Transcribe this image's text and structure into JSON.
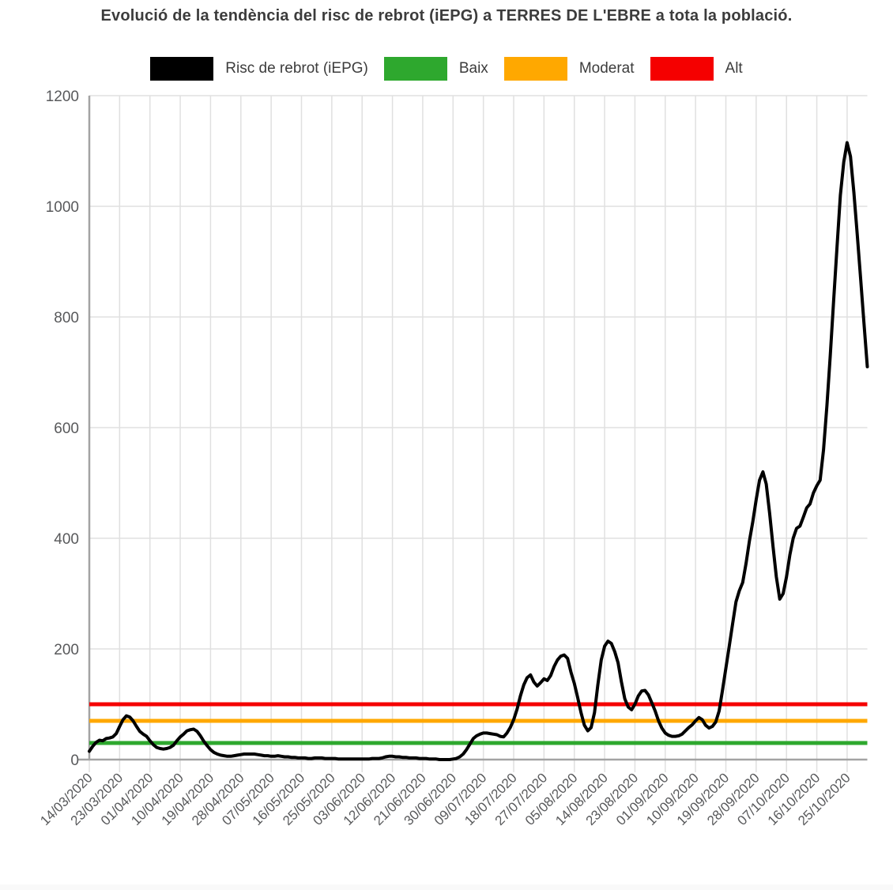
{
  "title": "Evolució de la tendència del risc de rebrot (iEPG) a TERRES DE L'EBRE a tota la població.",
  "legend": [
    {
      "label": "Risc de rebrot (iEPG)",
      "color": "#000000"
    },
    {
      "label": "Baix",
      "color": "#2ea82e"
    },
    {
      "label": "Moderat",
      "color": "#ffa800"
    },
    {
      "label": "Alt",
      "color": "#f50000"
    }
  ],
  "colors": {
    "series": "#000000",
    "baix": "#2ea82e",
    "moderat": "#ffa800",
    "alt": "#f50000",
    "grid": "#e0e0e0",
    "axis": "#a3a3a3",
    "tick_text": "#58595b",
    "title_text": "#3c3c3c"
  },
  "chart_data": {
    "type": "line",
    "title": "Evolució de la tendència del risc de rebrot (iEPG) a TERRES DE L'EBRE a tota la població.",
    "xlabel": "",
    "ylabel": "",
    "ylim": [
      0,
      1200
    ],
    "y_ticks": [
      0,
      200,
      400,
      600,
      800,
      1000,
      1200
    ],
    "grid": true,
    "legend_position": "top",
    "x_tick_labels": [
      "14/03/2020",
      "23/03/2020",
      "01/04/2020",
      "10/04/2020",
      "19/04/2020",
      "28/04/2020",
      "07/05/2020",
      "16/05/2020",
      "25/05/2020",
      "03/06/2020",
      "12/06/2020",
      "21/06/2020",
      "30/06/2020",
      "09/07/2020",
      "18/07/2020",
      "27/07/2020",
      "05/08/2020",
      "14/08/2020",
      "23/08/2020",
      "01/09/2020",
      "10/09/2020",
      "19/09/2020",
      "28/09/2020",
      "07/10/2020",
      "16/10/2020",
      "25/10/2020"
    ],
    "x_tick_interval_days": 9,
    "start_date": "14/03/2020",
    "end_date": "31/10/2020",
    "cadence": "daily",
    "thresholds": [
      {
        "name": "Baix",
        "value": 30,
        "color": "#2ea82e"
      },
      {
        "name": "Moderat",
        "value": 70,
        "color": "#ffa800"
      },
      {
        "name": "Alt",
        "value": 100,
        "color": "#f50000"
      }
    ],
    "series": [
      {
        "name": "Risc de rebrot (iEPG)",
        "color": "#000000",
        "values": [
          15,
          24,
          31,
          35,
          34,
          38,
          39,
          41,
          47,
          60,
          72,
          79,
          77,
          70,
          60,
          51,
          46,
          42,
          34,
          27,
          22,
          20,
          19,
          20,
          22,
          26,
          34,
          41,
          46,
          52,
          54,
          55,
          51,
          43,
          33,
          25,
          18,
          13,
          10,
          8,
          7,
          6,
          6,
          7,
          8,
          9,
          10,
          10,
          10,
          10,
          9,
          8,
          7,
          7,
          6,
          6,
          7,
          6,
          5,
          5,
          4,
          4,
          3,
          3,
          3,
          2,
          2,
          3,
          3,
          3,
          2,
          2,
          2,
          2,
          1,
          1,
          1,
          1,
          1,
          1,
          1,
          1,
          1,
          1,
          2,
          2,
          2,
          3,
          5,
          6,
          6,
          5,
          5,
          4,
          4,
          3,
          3,
          3,
          2,
          2,
          2,
          1,
          1,
          1,
          0,
          0,
          0,
          0,
          1,
          2,
          5,
          10,
          18,
          28,
          38,
          43,
          46,
          48,
          48,
          47,
          46,
          45,
          42,
          41,
          48,
          58,
          72,
          91,
          115,
          135,
          148,
          153,
          140,
          133,
          139,
          146,
          143,
          152,
          168,
          180,
          187,
          189,
          183,
          158,
          138,
          112,
          85,
          62,
          52,
          58,
          85,
          135,
          180,
          205,
          214,
          210,
          195,
          175,
          140,
          110,
          95,
          90,
          100,
          115,
          124,
          125,
          117,
          103,
          88,
          70,
          57,
          48,
          44,
          42,
          42,
          43,
          46,
          52,
          58,
          63,
          70,
          76,
          72,
          62,
          57,
          60,
          68,
          88,
          125,
          165,
          205,
          245,
          285,
          305,
          320,
          355,
          395,
          430,
          470,
          505,
          520,
          498,
          445,
          385,
          330,
          290,
          300,
          330,
          370,
          400,
          418,
          422,
          438,
          455,
          462,
          482,
          495,
          505,
          560,
          640,
          730,
          830,
          925,
          1020,
          1080,
          1115,
          1090,
          1025,
          950,
          870,
          790,
          710
        ]
      }
    ]
  }
}
